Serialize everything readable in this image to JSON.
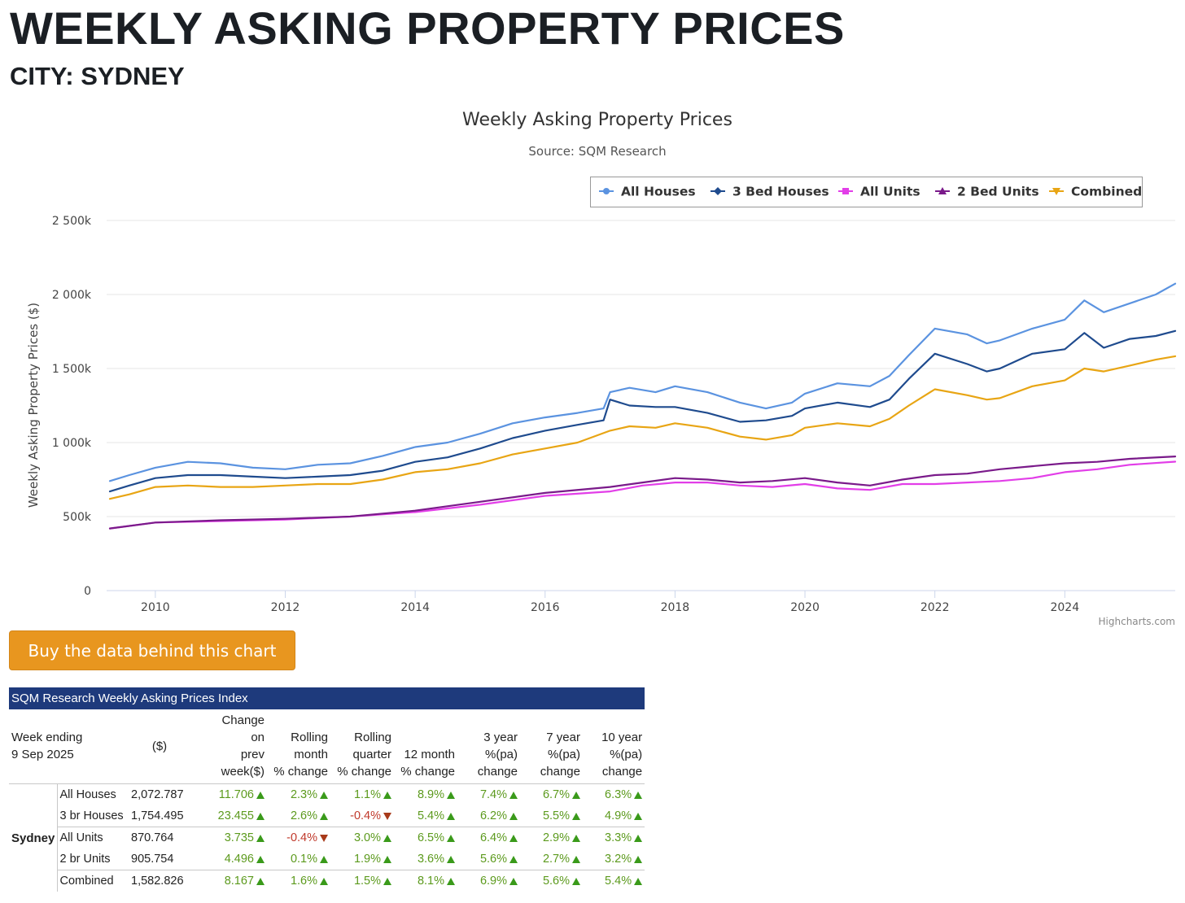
{
  "header": {
    "title": "WEEKLY ASKING PROPERTY PRICES",
    "subtitle": "CITY: SYDNEY"
  },
  "button": {
    "label": "Buy the data behind this chart"
  },
  "colors": {
    "all_houses": "#5b93e0",
    "three_bed_houses": "#1f4b8e",
    "all_units": "#e23ee8",
    "two_bed_units": "#7a1a8a",
    "combined": "#e8a514",
    "table_header": "#1e3a7c",
    "positive": "#5c9a1d",
    "negative": "#c0392b",
    "button": "#e8961f"
  },
  "chart_data": {
    "type": "line",
    "title": "Weekly Asking Property Prices",
    "subtitle": "Source: SQM Research",
    "xlabel": "",
    "ylabel": "Weekly Asking Property Prices ($)",
    "xlim": [
      2009.25,
      2025.7
    ],
    "ylim": [
      0,
      2500000
    ],
    "x_ticks": [
      2010,
      2012,
      2014,
      2016,
      2018,
      2020,
      2022,
      2024
    ],
    "x_tick_labels": [
      "2010",
      "2012",
      "2014",
      "2016",
      "2018",
      "2020",
      "2022",
      "2024"
    ],
    "y_ticks": [
      0,
      500000,
      1000000,
      1500000,
      2000000,
      2500000
    ],
    "y_tick_labels": [
      "0",
      "500k",
      "1 000k",
      "1 500k",
      "2 000k",
      "2 500k"
    ],
    "legend_position": "top-right",
    "grid": true,
    "credits": "Highcharts.com",
    "series": [
      {
        "name": "All Houses",
        "marker": "circle",
        "x": [
          2009.3,
          2009.6,
          2010,
          2010.5,
          2011,
          2011.5,
          2012,
          2012.5,
          2013,
          2013.5,
          2014,
          2014.5,
          2015,
          2015.5,
          2016,
          2016.5,
          2016.9,
          2017,
          2017.3,
          2017.7,
          2018,
          2018.5,
          2019,
          2019.4,
          2019.8,
          2020,
          2020.5,
          2021,
          2021.3,
          2021.6,
          2022,
          2022.5,
          2022.8,
          2023,
          2023.5,
          2024,
          2024.3,
          2024.6,
          2025,
          2025.4,
          2025.7
        ],
        "values": [
          740000,
          780000,
          830000,
          870000,
          860000,
          830000,
          820000,
          850000,
          860000,
          910000,
          970000,
          1000000,
          1060000,
          1130000,
          1170000,
          1200000,
          1230000,
          1340000,
          1370000,
          1340000,
          1380000,
          1340000,
          1270000,
          1230000,
          1270000,
          1330000,
          1400000,
          1380000,
          1450000,
          1590000,
          1770000,
          1730000,
          1670000,
          1690000,
          1770000,
          1830000,
          1960000,
          1880000,
          1940000,
          2000000,
          2073000
        ]
      },
      {
        "name": "3 Bed Houses",
        "marker": "diamond",
        "x": [
          2009.3,
          2009.6,
          2010,
          2010.5,
          2011,
          2011.5,
          2012,
          2012.5,
          2013,
          2013.5,
          2014,
          2014.5,
          2015,
          2015.5,
          2016,
          2016.5,
          2016.9,
          2017,
          2017.3,
          2017.7,
          2018,
          2018.5,
          2019,
          2019.4,
          2019.8,
          2020,
          2020.5,
          2021,
          2021.3,
          2021.6,
          2022,
          2022.5,
          2022.8,
          2023,
          2023.5,
          2024,
          2024.3,
          2024.6,
          2025,
          2025.4,
          2025.7
        ],
        "values": [
          670000,
          710000,
          760000,
          780000,
          780000,
          770000,
          760000,
          770000,
          780000,
          810000,
          870000,
          900000,
          960000,
          1030000,
          1080000,
          1120000,
          1150000,
          1290000,
          1250000,
          1240000,
          1240000,
          1200000,
          1140000,
          1150000,
          1180000,
          1230000,
          1270000,
          1240000,
          1290000,
          1430000,
          1600000,
          1530000,
          1480000,
          1500000,
          1600000,
          1630000,
          1740000,
          1640000,
          1700000,
          1720000,
          1754000
        ]
      },
      {
        "name": "All Units",
        "marker": "square",
        "x": [
          2009.3,
          2010,
          2011,
          2012,
          2013,
          2014,
          2015,
          2016,
          2017,
          2017.5,
          2018,
          2018.5,
          2019,
          2019.5,
          2020,
          2020.5,
          2021,
          2021.5,
          2022,
          2022.5,
          2023,
          2023.5,
          2024,
          2024.5,
          2025,
          2025.7
        ],
        "values": [
          420000,
          460000,
          470000,
          480000,
          500000,
          530000,
          580000,
          640000,
          670000,
          710000,
          730000,
          730000,
          710000,
          700000,
          720000,
          690000,
          680000,
          720000,
          720000,
          730000,
          740000,
          760000,
          800000,
          820000,
          850000,
          871000
        ]
      },
      {
        "name": "2 Bed Units",
        "marker": "triangle",
        "x": [
          2009.3,
          2010,
          2011,
          2012,
          2013,
          2014,
          2015,
          2016,
          2017,
          2017.5,
          2018,
          2018.5,
          2019,
          2019.5,
          2020,
          2020.5,
          2021,
          2021.5,
          2022,
          2022.5,
          2023,
          2023.5,
          2024,
          2024.5,
          2025,
          2025.7
        ],
        "values": [
          420000,
          460000,
          475000,
          485000,
          500000,
          540000,
          600000,
          660000,
          700000,
          730000,
          760000,
          750000,
          730000,
          740000,
          760000,
          730000,
          710000,
          750000,
          780000,
          790000,
          820000,
          840000,
          860000,
          870000,
          890000,
          906000
        ]
      },
      {
        "name": "Combined",
        "marker": "triangle-down",
        "x": [
          2009.3,
          2009.6,
          2010,
          2010.5,
          2011,
          2011.5,
          2012,
          2012.5,
          2013,
          2013.5,
          2014,
          2014.5,
          2015,
          2015.5,
          2016,
          2016.5,
          2017,
          2017.3,
          2017.7,
          2018,
          2018.5,
          2019,
          2019.4,
          2019.8,
          2020,
          2020.5,
          2021,
          2021.3,
          2021.6,
          2022,
          2022.5,
          2022.8,
          2023,
          2023.5,
          2024,
          2024.3,
          2024.6,
          2025,
          2025.4,
          2025.7
        ],
        "values": [
          620000,
          650000,
          700000,
          710000,
          700000,
          700000,
          710000,
          720000,
          720000,
          750000,
          800000,
          820000,
          860000,
          920000,
          960000,
          1000000,
          1080000,
          1110000,
          1100000,
          1130000,
          1100000,
          1040000,
          1020000,
          1050000,
          1100000,
          1130000,
          1110000,
          1160000,
          1250000,
          1360000,
          1320000,
          1290000,
          1300000,
          1380000,
          1420000,
          1500000,
          1480000,
          1520000,
          1560000,
          1583000
        ]
      }
    ]
  },
  "table": {
    "caption": "SQM Research Weekly Asking Prices Index",
    "headers": {
      "week_ending": "Week ending",
      "week_date": "9 Sep 2025",
      "price": "($)",
      "change_prev": [
        "Change",
        "on",
        "prev",
        "week($)"
      ],
      "rolling_month": [
        "Rolling",
        "month",
        "% change"
      ],
      "rolling_quarter": [
        "Rolling",
        "quarter",
        "% change"
      ],
      "twelve_month": [
        "12 month",
        "% change"
      ],
      "three_year": [
        "3 year",
        "%(pa)",
        "change"
      ],
      "seven_year": [
        "7 year",
        "%(pa)",
        "change"
      ],
      "ten_year": [
        "10 year",
        "%(pa)",
        "change"
      ]
    },
    "city": "Sydney",
    "rows": [
      {
        "label": "All Houses",
        "value": "2,072.787",
        "cells": [
          {
            "text": "11.706",
            "dir": "up"
          },
          {
            "text": "2.3%",
            "dir": "up"
          },
          {
            "text": "1.1%",
            "dir": "up"
          },
          {
            "text": "8.9%",
            "dir": "up"
          },
          {
            "text": "7.4%",
            "dir": "up"
          },
          {
            "text": "6.7%",
            "dir": "up"
          },
          {
            "text": "6.3%",
            "dir": "up"
          }
        ]
      },
      {
        "label": "3 br Houses",
        "value": "1,754.495",
        "cells": [
          {
            "text": "23.455",
            "dir": "up"
          },
          {
            "text": "2.6%",
            "dir": "up"
          },
          {
            "text": "-0.4%",
            "dir": "down"
          },
          {
            "text": "5.4%",
            "dir": "up"
          },
          {
            "text": "6.2%",
            "dir": "up"
          },
          {
            "text": "5.5%",
            "dir": "up"
          },
          {
            "text": "4.9%",
            "dir": "up"
          }
        ]
      },
      {
        "label": "All Units",
        "value": "870.764",
        "cells": [
          {
            "text": "3.735",
            "dir": "up"
          },
          {
            "text": "-0.4%",
            "dir": "down"
          },
          {
            "text": "3.0%",
            "dir": "up"
          },
          {
            "text": "6.5%",
            "dir": "up"
          },
          {
            "text": "6.4%",
            "dir": "up"
          },
          {
            "text": "2.9%",
            "dir": "up"
          },
          {
            "text": "3.3%",
            "dir": "up"
          }
        ]
      },
      {
        "label": "2 br Units",
        "value": "905.754",
        "cells": [
          {
            "text": "4.496",
            "dir": "up"
          },
          {
            "text": "0.1%",
            "dir": "up"
          },
          {
            "text": "1.9%",
            "dir": "up"
          },
          {
            "text": "3.6%",
            "dir": "up"
          },
          {
            "text": "5.6%",
            "dir": "up"
          },
          {
            "text": "2.7%",
            "dir": "up"
          },
          {
            "text": "3.2%",
            "dir": "up"
          }
        ]
      },
      {
        "label": "Combined",
        "value": "1,582.826",
        "cells": [
          {
            "text": "8.167",
            "dir": "up"
          },
          {
            "text": "1.6%",
            "dir": "up"
          },
          {
            "text": "1.5%",
            "dir": "up"
          },
          {
            "text": "8.1%",
            "dir": "up"
          },
          {
            "text": "6.9%",
            "dir": "up"
          },
          {
            "text": "5.6%",
            "dir": "up"
          },
          {
            "text": "5.4%",
            "dir": "up"
          }
        ]
      }
    ]
  }
}
